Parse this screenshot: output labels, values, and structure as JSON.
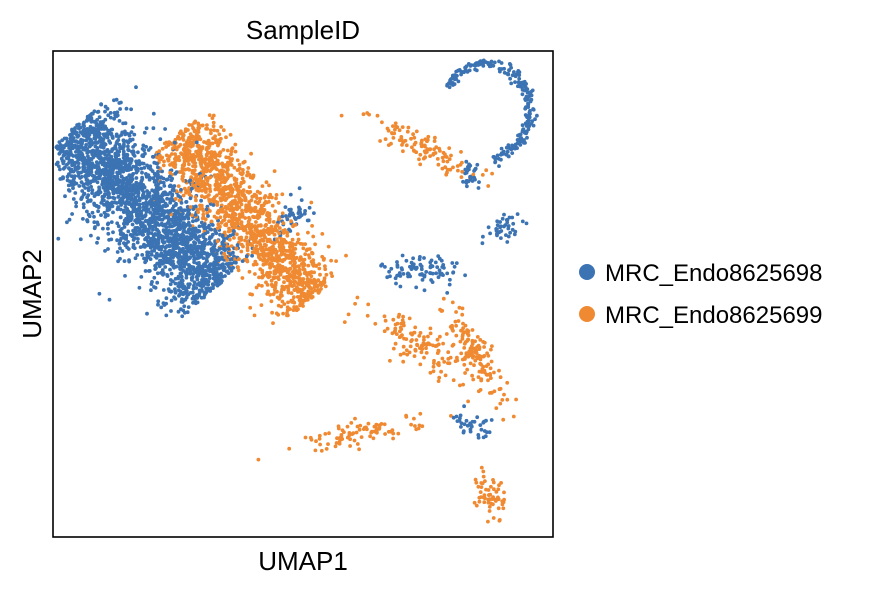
{
  "chart_data": {
    "type": "scatter",
    "title": "SampleID",
    "xlabel": "UMAP1",
    "ylabel": "UMAP2",
    "xlim": [
      0,
      100
    ],
    "ylim": [
      0,
      100
    ],
    "x_ticks": false,
    "y_ticks": false,
    "grid": false,
    "legend": "right-outside",
    "series": [
      {
        "name": "MRC_Endo8625698",
        "color": "#3b73b3",
        "clusters": [
          {
            "cx": 18,
            "cy": 68,
            "sx": 7,
            "sy": 7,
            "rot": -48,
            "n": 2400,
            "scaleX": 22,
            "scaleY": 4.5
          },
          {
            "cx": 74,
            "cy": 55,
            "sx": 2.0,
            "sy": 1.8,
            "rot": 0,
            "n": 90
          },
          {
            "cx": 48,
            "cy": 66,
            "sx": 0.6,
            "sy": 2.2,
            "rot": -25,
            "n": 45
          },
          {
            "cx": 84,
            "cy": 75,
            "sx": 0.4,
            "sy": 1.6,
            "rot": 10,
            "n": 30
          },
          {
            "cx": 91,
            "cy": 64,
            "sx": 0.6,
            "sy": 2.0,
            "rot": -55,
            "n": 40
          },
          {
            "cx": 84,
            "cy": 23,
            "sx": 0.6,
            "sy": 2.2,
            "rot": 70,
            "n": 35
          }
        ],
        "arc": {
          "cx": 87,
          "cy": 88,
          "r": 9,
          "start": 150,
          "end": -80,
          "n": 220
        }
      },
      {
        "name": "MRC_Endo8625699",
        "color": "#f08a32",
        "clusters": [
          {
            "cx": 38,
            "cy": 66,
            "sx": 6,
            "sy": 4,
            "rot": -52,
            "n": 1500,
            "scaleX": 22,
            "scaleY": 3.5
          },
          {
            "cx": 73,
            "cy": 40,
            "sx": 3.0,
            "sy": 2.0,
            "rot": -35,
            "n": 120
          },
          {
            "cx": 85,
            "cy": 37,
            "sx": 2.8,
            "sy": 1.6,
            "rot": -60,
            "n": 140
          },
          {
            "cx": 88,
            "cy": 8,
            "sx": 0.7,
            "sy": 3.0,
            "rot": 0,
            "n": 60
          },
          {
            "cx": 62,
            "cy": 21,
            "sx": 3.0,
            "sy": 1.2,
            "rot": 10,
            "n": 90
          },
          {
            "cx": 75,
            "cy": 80,
            "sx": 3.5,
            "sy": 1.4,
            "rot": -28,
            "n": 110
          }
        ]
      }
    ]
  }
}
